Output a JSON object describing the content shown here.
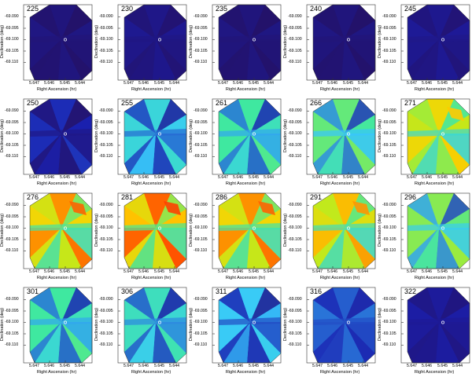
{
  "axes": {
    "ylabel": "Declination (deg)",
    "xlabel": "Right Ascension (hr)",
    "yticks": [
      "-69.090",
      "-69.095",
      "-69.100",
      "-69.105",
      "-69.110"
    ],
    "xticks": [
      "5.647",
      "5.646",
      "5.645",
      "5.644"
    ]
  },
  "colors": {
    "background": "#ffffff",
    "frame": "#333333",
    "marker": "#ffffff",
    "colormap": [
      "#2a0a3c",
      "#1a1fb0",
      "#38c8ff",
      "#40e8a0",
      "#b8ec20",
      "#ffd000",
      "#ff4000"
    ]
  },
  "panels": [
    {
      "label": "225",
      "intensity": 0.1,
      "pattern": "A"
    },
    {
      "label": "230",
      "intensity": 0.12,
      "pattern": "A"
    },
    {
      "label": "235",
      "intensity": 0.1,
      "pattern": "A"
    },
    {
      "label": "240",
      "intensity": 0.1,
      "pattern": "A"
    },
    {
      "label": "245",
      "intensity": 0.13,
      "pattern": "A"
    },
    {
      "label": "250",
      "intensity": 0.18,
      "pattern": "B"
    },
    {
      "label": "255",
      "intensity": 0.4,
      "pattern": "B"
    },
    {
      "label": "261",
      "intensity": 0.5,
      "pattern": "B"
    },
    {
      "label": "266",
      "intensity": 0.55,
      "pattern": "B"
    },
    {
      "label": "271",
      "intensity": 0.7,
      "pattern": "C"
    },
    {
      "label": "276",
      "intensity": 0.8,
      "pattern": "C"
    },
    {
      "label": "281",
      "intensity": 0.85,
      "pattern": "C"
    },
    {
      "label": "286",
      "intensity": 0.8,
      "pattern": "C"
    },
    {
      "label": "291",
      "intensity": 0.75,
      "pattern": "C"
    },
    {
      "label": "296",
      "intensity": 0.6,
      "pattern": "B"
    },
    {
      "label": "301",
      "intensity": 0.5,
      "pattern": "B"
    },
    {
      "label": "306",
      "intensity": 0.45,
      "pattern": "B"
    },
    {
      "label": "311",
      "intensity": 0.35,
      "pattern": "B"
    },
    {
      "label": "316",
      "intensity": 0.25,
      "pattern": "A"
    },
    {
      "label": "322",
      "intensity": 0.15,
      "pattern": "A"
    }
  ]
}
